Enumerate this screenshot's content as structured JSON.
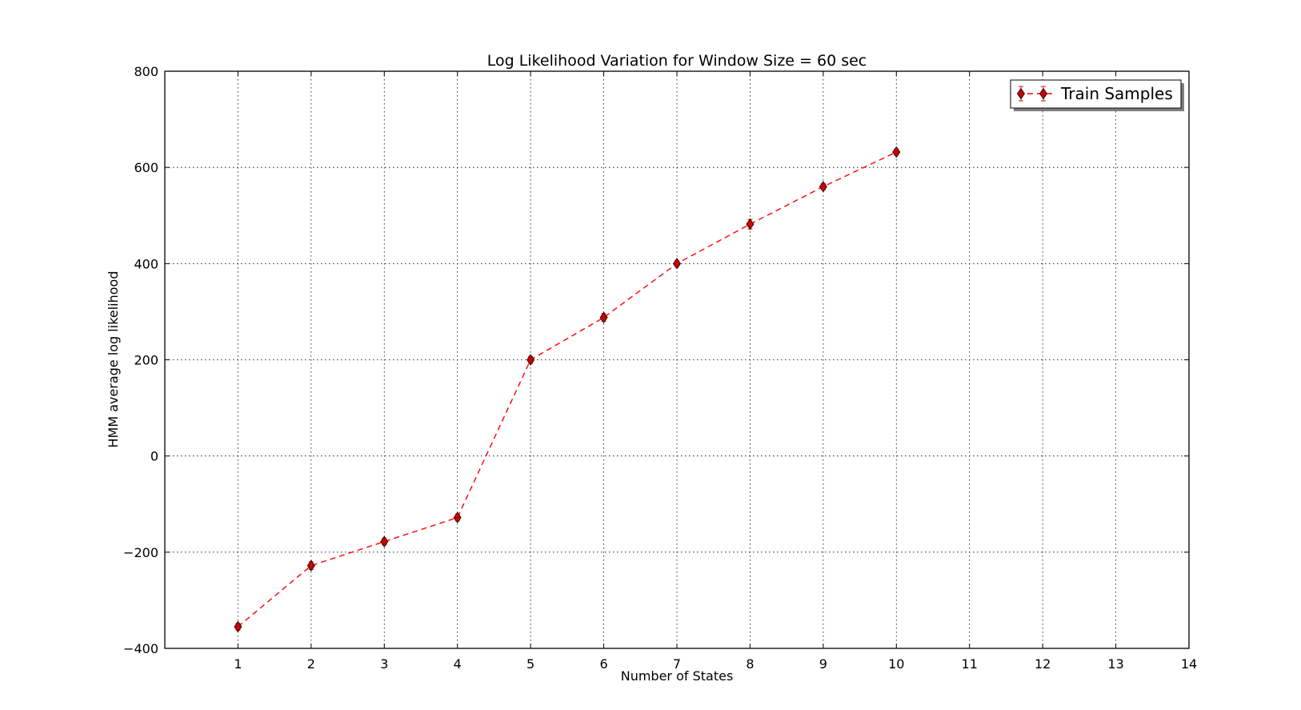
{
  "chart_data": {
    "type": "line",
    "title": "Log Likelihood Variation for Window Size = 60 sec",
    "xlabel": "Number of States",
    "ylabel": "HMM average log likelihood",
    "xlim": [
      0,
      14
    ],
    "ylim": [
      -400,
      800
    ],
    "xticks": [
      "1",
      "2",
      "3",
      "4",
      "5",
      "6",
      "7",
      "8",
      "9",
      "10",
      "11",
      "12",
      "13",
      "14"
    ],
    "yticks": [
      "800",
      "600",
      "400",
      "200",
      "0",
      "−200",
      "−400"
    ],
    "grid": true,
    "legend_position": "top-right",
    "series": [
      {
        "name": "Train Samples",
        "color": "#ff0000",
        "marker_fill": "#cc0000",
        "line_style": "dashed",
        "marker": "diamond",
        "x": [
          1,
          2,
          3,
          4,
          5,
          6,
          7,
          8,
          9,
          10
        ],
        "y": [
          -355,
          -228,
          -178,
          -128,
          200,
          288,
          400,
          482,
          560,
          632
        ],
        "error": [
          7,
          8,
          7,
          7,
          7,
          8,
          6,
          10,
          6,
          6
        ]
      }
    ]
  }
}
